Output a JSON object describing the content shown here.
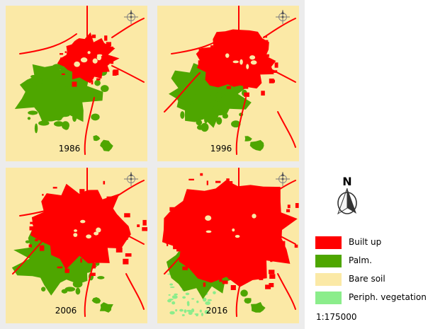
{
  "colors": {
    "built_up": "#ff0000",
    "palm": "#4ea600",
    "bare_soil": "#fbe9a6",
    "periph_vegetation": "#8bed8b",
    "background": "#ececec"
  },
  "maps": [
    {
      "year": "1986",
      "built_up_level": 0.25,
      "has_periph_vegetation": false
    },
    {
      "year": "1996",
      "built_up_level": 0.45,
      "has_periph_vegetation": false
    },
    {
      "year": "2006",
      "built_up_level": 0.7,
      "has_periph_vegetation": false
    },
    {
      "year": "2016",
      "built_up_level": 1.0,
      "has_periph_vegetation": true
    }
  ],
  "legend": {
    "north_label": "N",
    "items": [
      {
        "key": "built_up",
        "label": "Built up",
        "color": "#ff0000"
      },
      {
        "key": "palm",
        "label": "Palm.",
        "color": "#4ea600"
      },
      {
        "key": "bare_soil",
        "label": "Bare soil",
        "color": "#fbe9a6"
      },
      {
        "key": "periph_vegetation",
        "label": "Periph. vegetation",
        "color": "#8bed8b"
      }
    ],
    "scale": "1:175000"
  },
  "icons": {
    "north_arrow": "north-arrow-icon",
    "compass": "compass-rose-icon"
  }
}
